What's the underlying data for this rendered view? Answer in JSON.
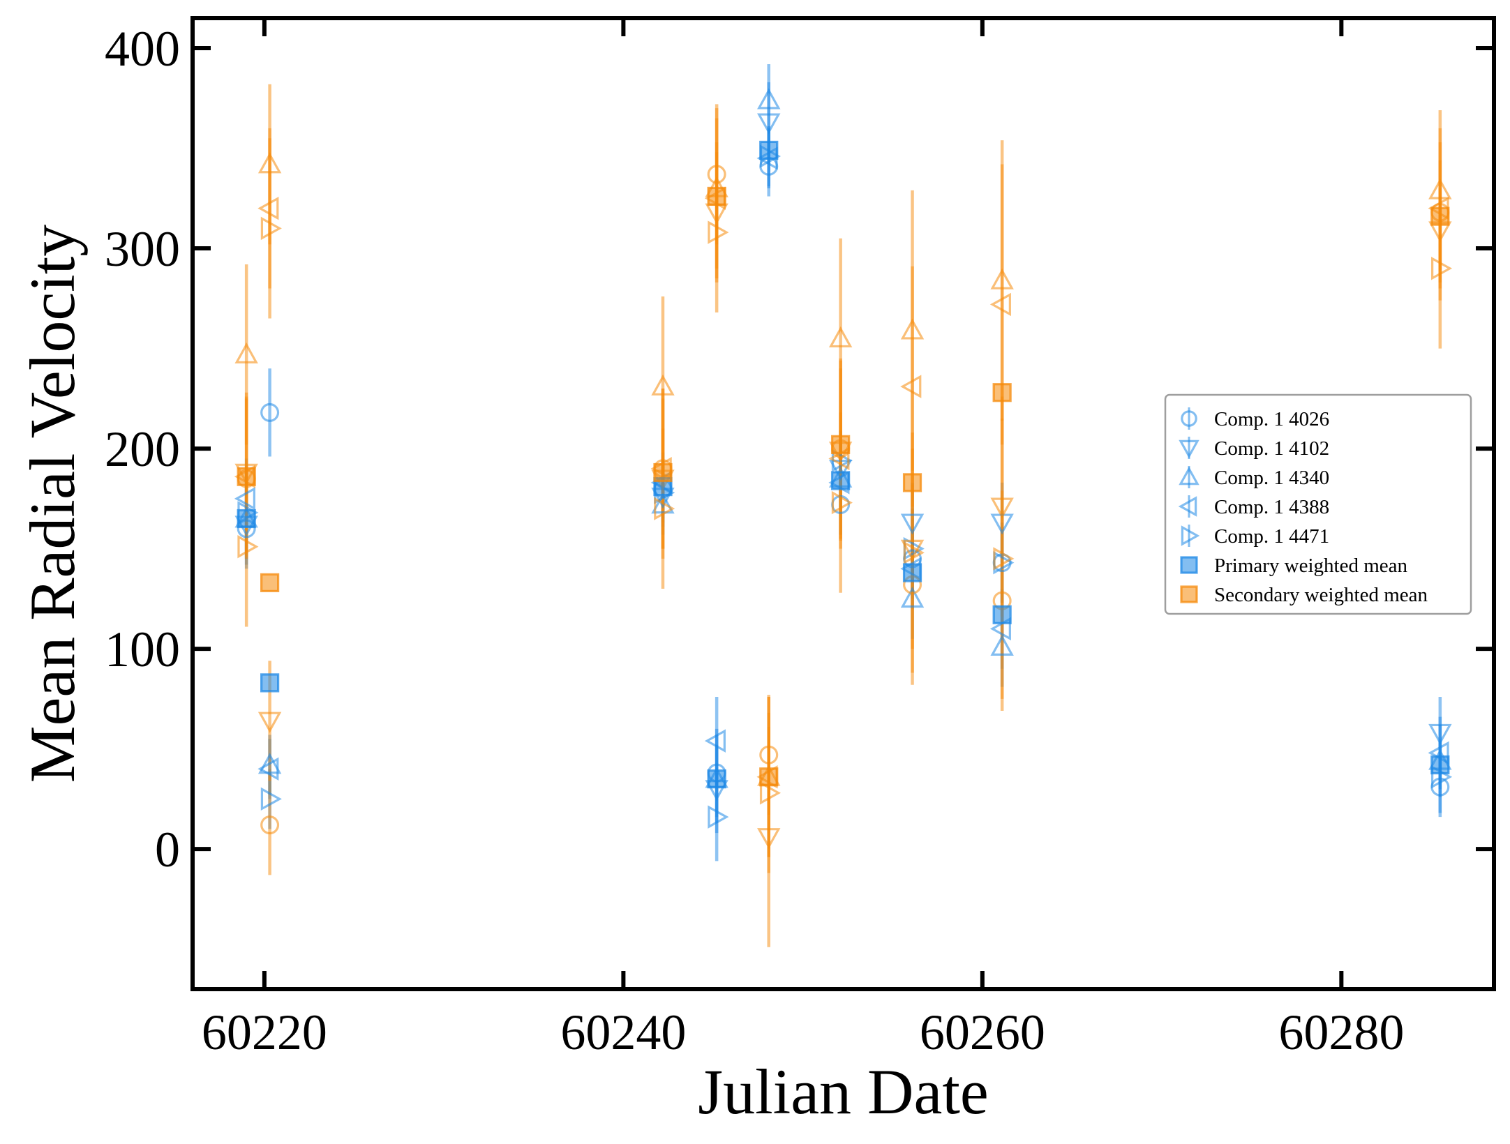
{
  "chart_data": {
    "type": "scatter",
    "title": "",
    "xlabel": "Julian Date",
    "ylabel": "Mean Radial Velocity",
    "xlim": [
      60216,
      60288.5
    ],
    "ylim": [
      -70,
      415
    ],
    "xticks": [
      60220,
      60240,
      60260,
      60280
    ],
    "xtick_labels": [
      "60220",
      "60240",
      "60260",
      "60280"
    ],
    "yticks": [
      0,
      100,
      200,
      300,
      400
    ],
    "ytick_labels": [
      "0",
      "100",
      "200",
      "300",
      "400"
    ],
    "grid": false,
    "legend_position": "center-right",
    "colors": {
      "primary": "#1e88e5",
      "secondary": "#f68a0a"
    },
    "legend": [
      {
        "label": "Comp. 1 4026",
        "marker": "circle",
        "color": "primary",
        "errorbar": true
      },
      {
        "label": "Comp. 1 4102",
        "marker": "triangle-down",
        "color": "primary",
        "errorbar": true
      },
      {
        "label": "Comp. 1 4340",
        "marker": "triangle-up",
        "color": "primary",
        "errorbar": true
      },
      {
        "label": "Comp. 1 4388",
        "marker": "triangle-left",
        "color": "primary",
        "errorbar": true
      },
      {
        "label": "Comp. 1 4471",
        "marker": "triangle-right",
        "color": "primary",
        "errorbar": true
      },
      {
        "label": "Primary weighted mean",
        "marker": "square",
        "color": "primary",
        "errorbar": false
      },
      {
        "label": "Secondary weighted mean",
        "marker": "square",
        "color": "secondary",
        "errorbar": false
      }
    ],
    "series": [
      {
        "component": "primary",
        "line": "4026",
        "marker": "circle",
        "points": [
          {
            "x": 60219.0,
            "y": 160,
            "err": 20
          },
          {
            "x": 60220.3,
            "y": 218,
            "err": 22
          },
          {
            "x": 60242.2,
            "y": 180,
            "err": 15
          },
          {
            "x": 60245.2,
            "y": 38,
            "err": 22
          },
          {
            "x": 60248.1,
            "y": 341,
            "err": 15
          },
          {
            "x": 60252.1,
            "y": 172,
            "err": 15
          },
          {
            "x": 60256.1,
            "y": 145,
            "err": 20
          },
          {
            "x": 60261.1,
            "y": 143,
            "err": 20
          },
          {
            "x": 60285.5,
            "y": 31,
            "err": 15
          }
        ]
      },
      {
        "component": "primary",
        "line": "4102",
        "marker": "triangle-down",
        "points": [
          {
            "x": 60219.0,
            "y": 162,
            "err": 20
          },
          {
            "x": 60242.2,
            "y": 176,
            "err": 15
          },
          {
            "x": 60245.2,
            "y": 30,
            "err": 22
          },
          {
            "x": 60248.1,
            "y": 363,
            "err": 20
          },
          {
            "x": 60252.1,
            "y": 190,
            "err": 15
          },
          {
            "x": 60256.1,
            "y": 163,
            "err": 20
          },
          {
            "x": 60261.1,
            "y": 163,
            "err": 20
          },
          {
            "x": 60285.5,
            "y": 58,
            "err": 18
          }
        ]
      },
      {
        "component": "primary",
        "line": "4340",
        "marker": "triangle-up",
        "points": [
          {
            "x": 60219.0,
            "y": 165,
            "err": 20
          },
          {
            "x": 60220.3,
            "y": 42,
            "err": 15
          },
          {
            "x": 60242.2,
            "y": 172,
            "err": 15
          },
          {
            "x": 60245.2,
            "y": 35,
            "err": 22
          },
          {
            "x": 60248.1,
            "y": 374,
            "err": 18
          },
          {
            "x": 60252.1,
            "y": 185,
            "err": 15
          },
          {
            "x": 60256.1,
            "y": 125,
            "err": 20
          },
          {
            "x": 60261.1,
            "y": 101,
            "err": 20
          },
          {
            "x": 60285.5,
            "y": 44,
            "err": 18
          }
        ]
      },
      {
        "component": "primary",
        "line": "4388",
        "marker": "triangle-left",
        "points": [
          {
            "x": 60219.0,
            "y": 175,
            "err": 20
          },
          {
            "x": 60220.3,
            "y": 40,
            "err": 15
          },
          {
            "x": 60242.2,
            "y": 183,
            "err": 15
          },
          {
            "x": 60245.2,
            "y": 54,
            "err": 22
          },
          {
            "x": 60248.1,
            "y": 345,
            "err": 15
          },
          {
            "x": 60252.1,
            "y": 183,
            "err": 15
          },
          {
            "x": 60256.1,
            "y": 140,
            "err": 20
          },
          {
            "x": 60261.1,
            "y": 110,
            "err": 20
          },
          {
            "x": 60285.5,
            "y": 48,
            "err": 18
          }
        ]
      },
      {
        "component": "primary",
        "line": "4471",
        "marker": "triangle-right",
        "points": [
          {
            "x": 60219.0,
            "y": 168,
            "err": 20
          },
          {
            "x": 60220.3,
            "y": 25,
            "err": 15
          },
          {
            "x": 60242.2,
            "y": 178,
            "err": 15
          },
          {
            "x": 60245.2,
            "y": 16,
            "err": 22
          },
          {
            "x": 60248.1,
            "y": 346,
            "err": 15
          },
          {
            "x": 60252.1,
            "y": 194,
            "err": 15
          },
          {
            "x": 60256.1,
            "y": 150,
            "err": 20
          },
          {
            "x": 60261.1,
            "y": 143,
            "err": 20
          },
          {
            "x": 60285.5,
            "y": 36,
            "err": 18
          }
        ]
      },
      {
        "component": "secondary",
        "line": "4026",
        "marker": "circle",
        "points": [
          {
            "x": 60219.0,
            "y": 185,
            "err": 40
          },
          {
            "x": 60220.3,
            "y": 12,
            "err": 25
          },
          {
            "x": 60242.2,
            "y": 190,
            "err": 40
          },
          {
            "x": 60245.2,
            "y": 337,
            "err": 35
          },
          {
            "x": 60248.1,
            "y": 47,
            "err": 30
          },
          {
            "x": 60252.1,
            "y": 200,
            "err": 45
          },
          {
            "x": 60256.1,
            "y": 132,
            "err": 50
          },
          {
            "x": 60261.1,
            "y": 124,
            "err": 55
          },
          {
            "x": 60285.5,
            "y": 318,
            "err": 35
          }
        ]
      },
      {
        "component": "secondary",
        "line": "4102",
        "marker": "triangle-down",
        "points": [
          {
            "x": 60219.0,
            "y": 188,
            "err": 40
          },
          {
            "x": 60220.3,
            "y": 64,
            "err": 30
          },
          {
            "x": 60242.2,
            "y": 185,
            "err": 40
          },
          {
            "x": 60245.2,
            "y": 318,
            "err": 35
          },
          {
            "x": 60248.1,
            "y": 6,
            "err": 55
          },
          {
            "x": 60252.1,
            "y": 199,
            "err": 45
          },
          {
            "x": 60256.1,
            "y": 150,
            "err": 50
          },
          {
            "x": 60261.1,
            "y": 171,
            "err": 55
          },
          {
            "x": 60285.5,
            "y": 309,
            "err": 35
          }
        ]
      },
      {
        "component": "secondary",
        "line": "4340",
        "marker": "triangle-up",
        "points": [
          {
            "x": 60219.0,
            "y": 247,
            "err": 45
          },
          {
            "x": 60220.3,
            "y": 342,
            "err": 40
          },
          {
            "x": 60242.2,
            "y": 231,
            "err": 45
          },
          {
            "x": 60245.2,
            "y": 330,
            "err": 40
          },
          {
            "x": 60248.1,
            "y": 36,
            "err": 40
          },
          {
            "x": 60252.1,
            "y": 255,
            "err": 50
          },
          {
            "x": 60256.1,
            "y": 259,
            "err": 70
          },
          {
            "x": 60261.1,
            "y": 284,
            "err": 70
          },
          {
            "x": 60285.5,
            "y": 329,
            "err": 40
          }
        ]
      },
      {
        "component": "secondary",
        "line": "4388",
        "marker": "triangle-left",
        "points": [
          {
            "x": 60219.0,
            "y": 186,
            "err": 40
          },
          {
            "x": 60220.3,
            "y": 320,
            "err": 40
          },
          {
            "x": 60242.2,
            "y": 190,
            "err": 40
          },
          {
            "x": 60245.2,
            "y": 325,
            "err": 40
          },
          {
            "x": 60248.1,
            "y": 36,
            "err": 40
          },
          {
            "x": 60252.1,
            "y": 195,
            "err": 45
          },
          {
            "x": 60256.1,
            "y": 231,
            "err": 60
          },
          {
            "x": 60261.1,
            "y": 272,
            "err": 70
          },
          {
            "x": 60285.5,
            "y": 320,
            "err": 40
          }
        ]
      },
      {
        "component": "secondary",
        "line": "4471",
        "marker": "triangle-right",
        "points": [
          {
            "x": 60219.0,
            "y": 151,
            "err": 40
          },
          {
            "x": 60220.3,
            "y": 310,
            "err": 45
          },
          {
            "x": 60242.2,
            "y": 170,
            "err": 40
          },
          {
            "x": 60245.2,
            "y": 308,
            "err": 40
          },
          {
            "x": 60248.1,
            "y": 28,
            "err": 40
          },
          {
            "x": 60252.1,
            "y": 173,
            "err": 45
          },
          {
            "x": 60256.1,
            "y": 148,
            "err": 60
          },
          {
            "x": 60261.1,
            "y": 145,
            "err": 70
          },
          {
            "x": 60285.5,
            "y": 290,
            "err": 40
          }
        ]
      },
      {
        "component": "primary",
        "line": "Primary weighted mean",
        "marker": "square",
        "points": [
          {
            "x": 60219.0,
            "y": 165
          },
          {
            "x": 60220.3,
            "y": 83
          },
          {
            "x": 60242.2,
            "y": 181
          },
          {
            "x": 60245.2,
            "y": 35
          },
          {
            "x": 60248.1,
            "y": 349
          },
          {
            "x": 60252.1,
            "y": 184
          },
          {
            "x": 60256.1,
            "y": 138
          },
          {
            "x": 60261.1,
            "y": 117
          },
          {
            "x": 60285.5,
            "y": 42
          }
        ]
      },
      {
        "component": "secondary",
        "line": "Secondary weighted mean",
        "marker": "square",
        "points": [
          {
            "x": 60219.0,
            "y": 186
          },
          {
            "x": 60220.3,
            "y": 133
          },
          {
            "x": 60242.2,
            "y": 188
          },
          {
            "x": 60245.2,
            "y": 326
          },
          {
            "x": 60248.1,
            "y": 36
          },
          {
            "x": 60252.1,
            "y": 202
          },
          {
            "x": 60256.1,
            "y": 183
          },
          {
            "x": 60261.1,
            "y": 228
          },
          {
            "x": 60285.5,
            "y": 316
          }
        ]
      }
    ]
  }
}
